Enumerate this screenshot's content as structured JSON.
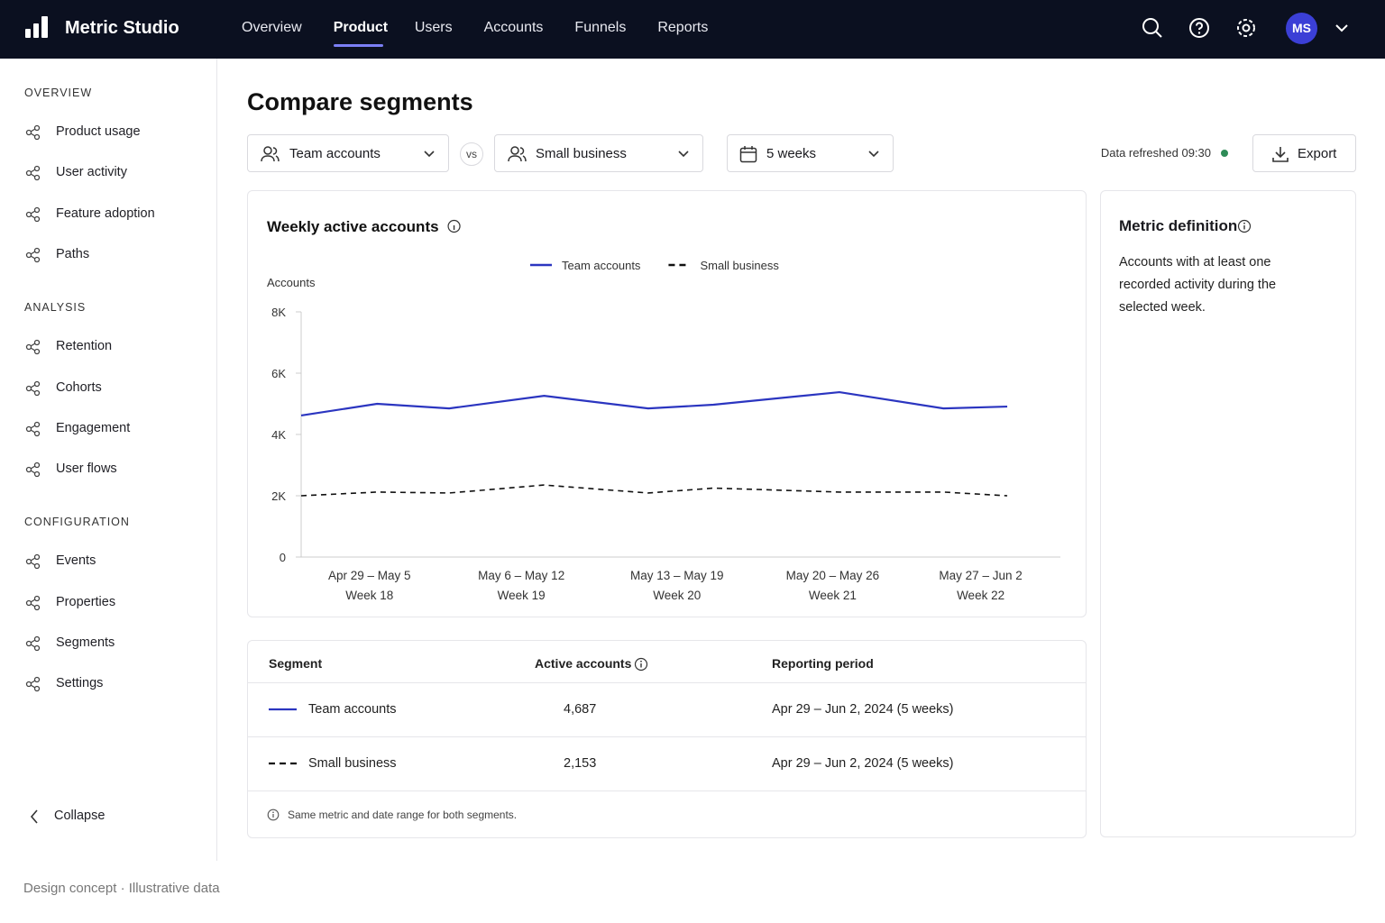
{
  "nav": {
    "brand": "Metric Studio",
    "links": [
      "Overview",
      "Product",
      "Users",
      "Accounts",
      "Funnels",
      "Reports"
    ],
    "active": 1,
    "avatar": "MS"
  },
  "sidebar": {
    "sections": [
      {
        "title": "OVERVIEW",
        "items": [
          "Product usage",
          "User activity",
          "Feature adoption",
          "Paths"
        ]
      },
      {
        "title": "ANALYSIS",
        "items": [
          "Retention",
          "Cohorts",
          "Engagement",
          "User flows"
        ]
      },
      {
        "title": "CONFIGURATION",
        "items": [
          "Events",
          "Properties",
          "Segments",
          "Settings"
        ]
      }
    ],
    "collapse": "Collapse"
  },
  "page": {
    "title": "Compare segments",
    "segment_a": "Team accounts",
    "vs": "vs",
    "segment_b": "Small business",
    "range": "5 weeks",
    "refreshed": "Data refreshed 09:30",
    "export": "Export"
  },
  "chart_data": {
    "type": "line",
    "title": "Weekly active accounts",
    "y_label": "Accounts",
    "x": [
      0,
      1,
      1.95,
      3.2,
      4.57,
      5.43,
      7.09,
      8.46,
      9.3
    ],
    "xlim": [
      0,
      10
    ],
    "xticks": [
      {
        "value": 0.9,
        "label": "Apr 29 – May 5",
        "sublabel": "Week 18"
      },
      {
        "value": 2.9,
        "label": "May 6 – May 12",
        "sublabel": "Week 19"
      },
      {
        "value": 4.95,
        "label": "May 13 – May 19",
        "sublabel": "Week 20"
      },
      {
        "value": 7,
        "label": "May 20 – May 26",
        "sublabel": "Week 21"
      },
      {
        "value": 8.95,
        "label": "May 27 – Jun 2",
        "sublabel": "Week 22"
      }
    ],
    "ylim": [
      0,
      8000
    ],
    "yticks": [
      0,
      {
        "value": 2000,
        "label": "2K"
      },
      {
        "value": 4000,
        "label": "4K"
      },
      {
        "value": 6000,
        "label": "6K"
      },
      {
        "value": 8000,
        "label": "8K"
      }
    ],
    "grid": false,
    "series": [
      {
        "name": "Team accounts",
        "color": "#2b35c0",
        "style": "solid",
        "values": [
          4620,
          5000,
          4850,
          5260,
          4850,
          4970,
          5380,
          4850,
          4910
        ]
      },
      {
        "name": "Small business",
        "color": "#111111",
        "style": "dashed",
        "values": [
          2000,
          2120,
          2090,
          2350,
          2090,
          2250,
          2120,
          2120,
          2000
        ]
      }
    ]
  },
  "definition": {
    "title": "Metric definition",
    "text": "Accounts with at least one recorded activity during the selected week."
  },
  "table": {
    "headers": [
      "Segment",
      "Active accounts",
      "Reporting period"
    ],
    "rows": [
      [
        "Team accounts",
        "4,687",
        "Apr 29 – Jun 2, 2024 (5 weeks)"
      ],
      [
        "Small business",
        "2,153",
        "Apr 29 – Jun 2, 2024 (5 weeks)"
      ]
    ],
    "note": "Same metric and date range for both segments."
  },
  "footer": {
    "text": "Design concept · Illustrative data"
  }
}
